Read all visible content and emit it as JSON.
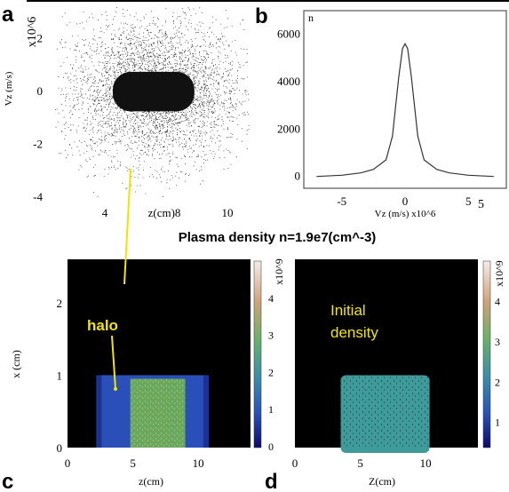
{
  "panel_labels": {
    "a": "a",
    "b": "b",
    "c": "c",
    "d": "d"
  },
  "caption": "Plasma density n=1.9e7(cm^-3)",
  "chart_data": [
    {
      "id": "a",
      "type": "scatter",
      "xlabel": "z(cm)",
      "ylabel": "Vz (m/s)",
      "yscale_label": "x10^6",
      "x_ticks": [
        "4",
        "z(cm)8",
        "10"
      ],
      "y_ticks": [
        "-4",
        "-2",
        "0",
        "2"
      ],
      "xlim": [
        1.2,
        12.6
      ],
      "ylim": [
        -4,
        3.2
      ],
      "core": {
        "z_center": 7,
        "z_halfwidth": 2.4,
        "v_halfwidth": 0.75
      },
      "halo": {
        "z_center": 7,
        "z_spread": 2.6,
        "v_spread": 1.35
      },
      "color": "#111111"
    },
    {
      "id": "b",
      "type": "line",
      "ylabel": "n",
      "xlabel": "Vz (m/s) x10^6",
      "xlabel_tail": "5",
      "x_ticks": [
        "-5",
        "0",
        "5"
      ],
      "y_ticks": [
        "0",
        "2000",
        "4000",
        "6000"
      ],
      "xlim": [
        -8,
        8
      ],
      "ylim": [
        -500,
        7000
      ],
      "x": [
        -7,
        -5,
        -3.5,
        -2.5,
        -1.5,
        -1,
        -0.5,
        -0.2,
        0,
        0.2,
        0.5,
        1,
        1.5,
        2.5,
        3.5,
        5,
        7
      ],
      "y": [
        0,
        50,
        150,
        300,
        700,
        1700,
        4200,
        5400,
        5600,
        5400,
        4200,
        1700,
        700,
        300,
        150,
        50,
        0
      ]
    },
    {
      "id": "c",
      "type": "heatmap",
      "xlabel": "z(cm)",
      "ylabel": "x (cm)",
      "x_ticks": [
        "0",
        "5",
        "10"
      ],
      "y_ticks": [
        "0",
        "1",
        "2"
      ],
      "colorbar_ticks": [
        "0",
        "1",
        "2",
        "3",
        "4"
      ],
      "colorbar_scale": "x10^9",
      "xlim": [
        0,
        14
      ],
      "ylim": [
        0,
        2.6
      ],
      "halo_region": {
        "z": [
          2.2,
          10.8
        ],
        "x_top": 1.0,
        "level": 0.6
      },
      "core_region": {
        "z": [
          4.8,
          9.0
        ],
        "x_top": 0.95,
        "level": 2.8
      },
      "annotation": "halo",
      "annotation_color": "#f2e400"
    },
    {
      "id": "d",
      "type": "heatmap",
      "xlabel": "Z(cm)",
      "x_ticks": [
        "0",
        "5",
        "10"
      ],
      "colorbar_ticks": [
        "1",
        "2",
        "3",
        "4"
      ],
      "colorbar_scale": "x10^9",
      "xlim": [
        0,
        14
      ],
      "ylim": [
        0,
        2.6
      ],
      "region": {
        "z": [
          3.5,
          10.3
        ],
        "x_top": 1.0,
        "level": 1.9
      },
      "annotation": [
        "Initial",
        "density"
      ],
      "annotation_color": "#f2e400"
    }
  ]
}
